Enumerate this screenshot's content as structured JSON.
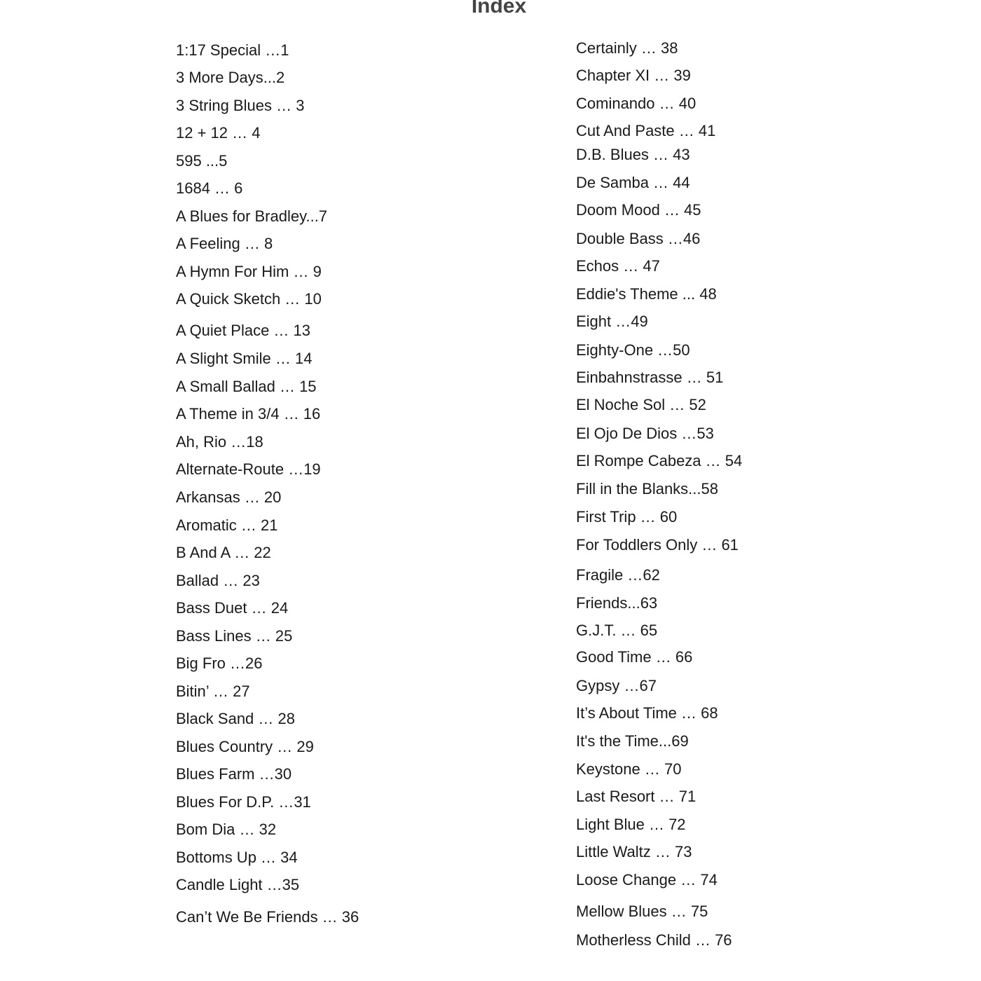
{
  "title": "Index",
  "left_column": [
    "1:17 Special …1",
    "3 More Days...2",
    "3 String Blues … 3",
    "12 + 12 … 4",
    "595 ...5",
    "1684 … 6",
    "A Blues for Bradley...7",
    "A Feeling … 8",
    "A Hymn For Him … 9",
    "A Quick Sketch … 10",
    "A Quiet Place … 13",
    "A Slight Smile … 14",
    "A Small Ballad … 15",
    "A Theme in 3/4 … 16",
    "Ah, Rio …18",
    "Alternate-Route …19",
    "Arkansas … 20",
    "Aromatic … 21",
    "B And A … 22",
    "Ballad … 23",
    "Bass Duet … 24",
    "Bass Lines … 25",
    "Big Fro …26",
    "Bitin’ … 27",
    "Black Sand … 28",
    "Blues Country … 29",
    "Blues Farm …30",
    "Blues For D.P. …31",
    "Bom Dia … 32",
    "Bottoms Up … 34",
    "Candle Light …35",
    "Can’t We Be Friends … 36"
  ],
  "right_column": [
    "Certainly … 38",
    "Chapter XI … 39",
    "Cominando … 40",
    "Cut And Paste … 41",
    "D.B. Blues … 43",
    "De Samba … 44",
    "Doom Mood … 45",
    "Double Bass …46",
    "Echos … 47",
    "Eddie's Theme ... 48",
    "Eight …49",
    "Eighty-One …50",
    "Einbahnstrasse … 51",
    "El Noche Sol … 52",
    "El Ojo De Dios …53",
    "El Rompe Cabeza … 54",
    "Fill in the Blanks...58",
    "First Trip … 60",
    "For Toddlers Only … 61",
    "Fragile …62",
    "Friends...63",
    "G.J.T. … 65",
    "Good Time … 66",
    "Gypsy …67",
    "It’s About Time … 68",
    "It's the Time...69",
    "Keystone … 70",
    "Last Resort … 71",
    "Light Blue … 72",
    "Little Waltz … 73",
    "Loose Change … 74",
    "Mellow Blues … 75",
    "Motherless Child … 76"
  ]
}
